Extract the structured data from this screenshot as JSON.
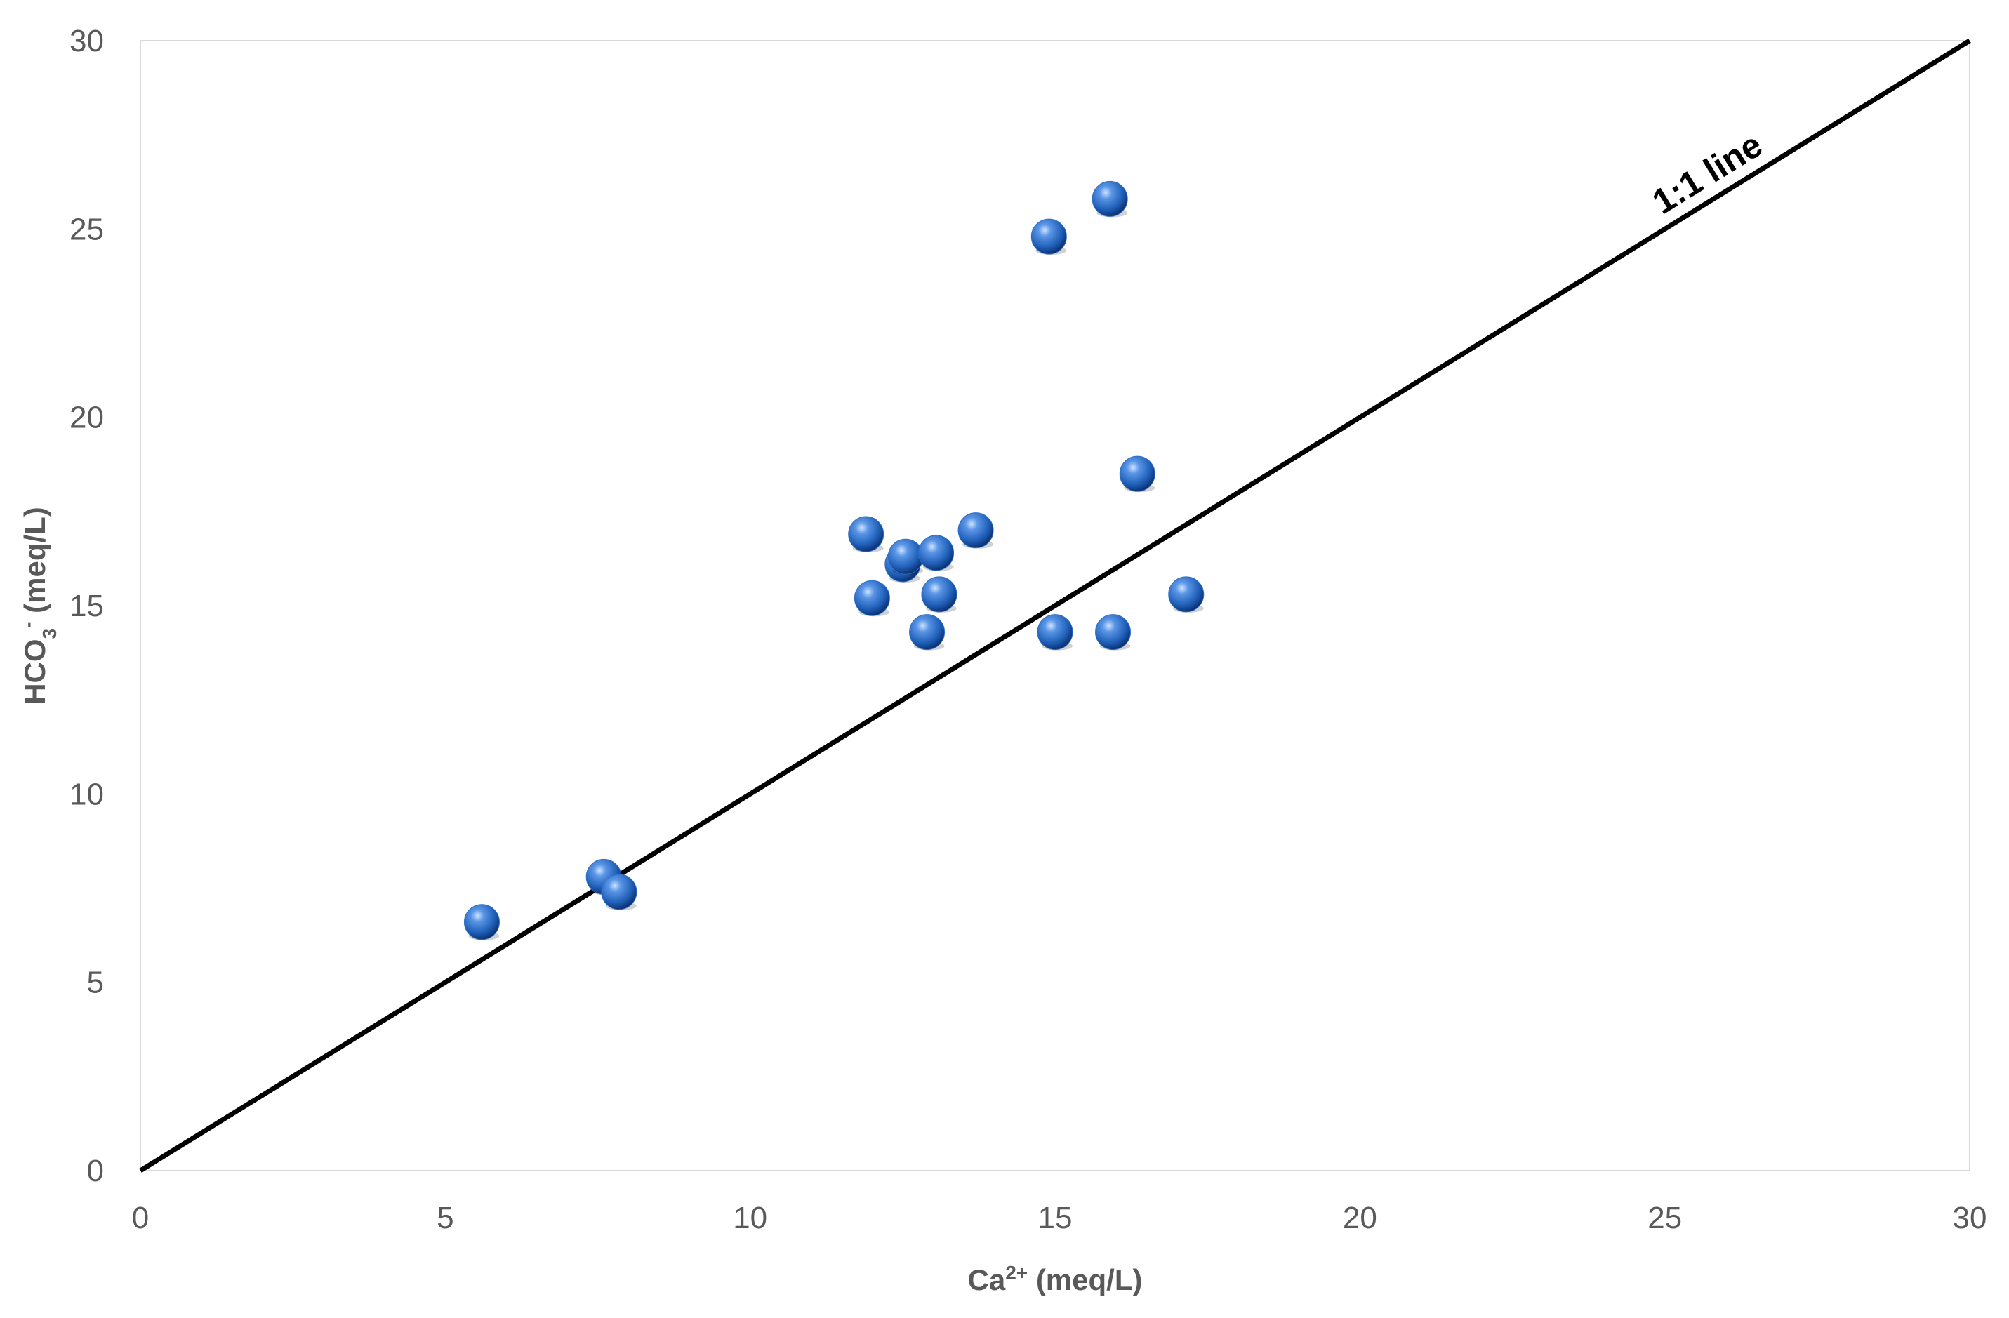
{
  "chart_data": {
    "type": "scatter",
    "title": "",
    "xlabel": {
      "base": "Ca",
      "sup": "2+",
      "unit": " (meq/L)"
    },
    "ylabel": {
      "base": "HCO",
      "sub": "3",
      "sup": "-",
      "unit": " (meq/L)"
    },
    "xlim": [
      0,
      30
    ],
    "ylim": [
      0,
      30
    ],
    "x_ticks": [
      "0",
      "5",
      "10",
      "15",
      "20",
      "25",
      "30"
    ],
    "y_ticks": [
      "0",
      "5",
      "10",
      "15",
      "20",
      "25",
      "30"
    ],
    "grid": false,
    "marker_color": "#2E6FC7",
    "series": [
      {
        "points": [
          {
            "x": 5.6,
            "y": 6.6
          },
          {
            "x": 7.6,
            "y": 7.8
          },
          {
            "x": 7.85,
            "y": 7.4
          },
          {
            "x": 11.9,
            "y": 16.9
          },
          {
            "x": 12.0,
            "y": 15.2
          },
          {
            "x": 12.5,
            "y": 16.1
          },
          {
            "x": 12.55,
            "y": 16.3
          },
          {
            "x": 12.9,
            "y": 14.3
          },
          {
            "x": 13.05,
            "y": 16.4
          },
          {
            "x": 13.1,
            "y": 15.3
          },
          {
            "x": 13.7,
            "y": 17.0
          },
          {
            "x": 14.9,
            "y": 24.8
          },
          {
            "x": 15.0,
            "y": 14.3
          },
          {
            "x": 15.9,
            "y": 25.8
          },
          {
            "x": 15.95,
            "y": 14.3
          },
          {
            "x": 16.35,
            "y": 18.5
          },
          {
            "x": 17.15,
            "y": 15.3
          }
        ]
      }
    ],
    "reference_line": {
      "label": "1:1 line",
      "from": [
        0,
        0
      ],
      "to": [
        30,
        30
      ],
      "color": "#000000"
    }
  }
}
